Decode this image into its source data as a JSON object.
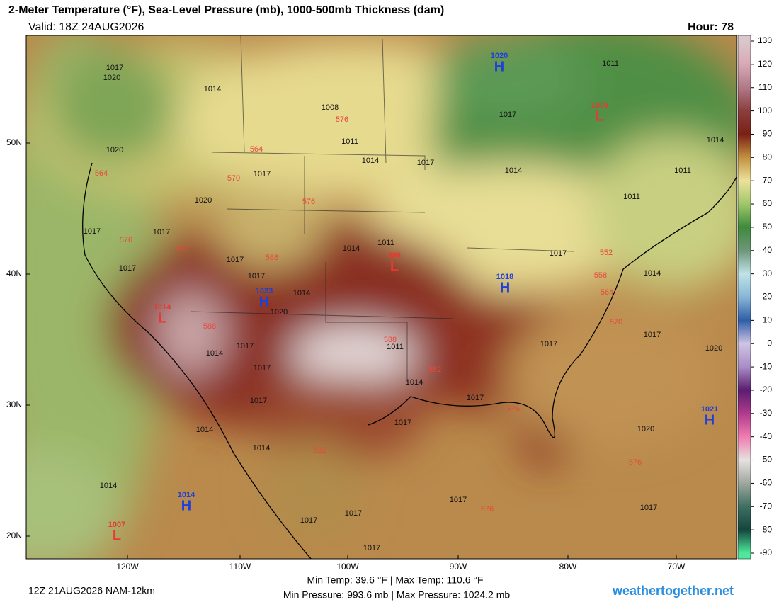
{
  "header": {
    "title": "2-Meter Temperature (°F), Sea-Level Pressure (mb), 1000-500mb Thickness (dam)",
    "valid": "Valid: 18Z 24AUG2026",
    "hour": "Hour: 78"
  },
  "colorbar": {
    "ticks": [
      130,
      120,
      110,
      100,
      90,
      80,
      70,
      60,
      50,
      40,
      30,
      20,
      10,
      0,
      -10,
      -20,
      -30,
      -40,
      -50,
      -60,
      -70,
      -80,
      -90
    ],
    "colors": [
      "#d9c7cc",
      "#d7a9b7",
      "#b17988",
      "#8a3f3c",
      "#7a1f16",
      "#c2913f",
      "#ece29a",
      "#9fc76a",
      "#3f8a3c",
      "#6f967a",
      "#bfe3e6",
      "#87b6d6",
      "#2f5ea8",
      "#cfc4e3",
      "#a98cc6",
      "#5a1d70",
      "#b03a8c",
      "#f07cb0",
      "#e7e1df",
      "#9ea79e",
      "#3e6f62",
      "#15463e",
      "#4ee89a"
    ]
  },
  "axes": {
    "lat": [
      "50N",
      "40N",
      "30N",
      "20N"
    ],
    "lon": [
      "120W",
      "110W",
      "100W",
      "90W",
      "80W",
      "70W"
    ]
  },
  "centers": [
    {
      "symbol": "H",
      "value": 1020
    },
    {
      "symbol": "L",
      "value": 1009
    },
    {
      "symbol": "H",
      "value": 1018
    },
    {
      "symbol": "H",
      "value": 1023
    },
    {
      "symbol": "L",
      "value": 1014
    },
    {
      "symbol": "L",
      "value": 998
    },
    {
      "symbol": "L",
      "value": 1007
    },
    {
      "symbol": "H",
      "value": 1014
    },
    {
      "symbol": "H",
      "value": 1021
    }
  ],
  "isobar_labels": [
    1017,
    1020,
    1014,
    1008,
    1011,
    1017,
    1011,
    1014,
    1011,
    1020,
    1017,
    1014,
    1017,
    1014,
    1011,
    1020,
    1017,
    1017,
    1017,
    1014,
    1011,
    1017,
    1017,
    1017,
    1014,
    1020,
    1014,
    1017,
    1017,
    1020,
    1011,
    1014,
    1017,
    1017,
    1014,
    1017,
    1017,
    1017,
    1014,
    1014,
    1020,
    1014,
    1017,
    1017,
    1017,
    1017,
    1017
  ],
  "thickness_labels": [
    576,
    564,
    564,
    570,
    576,
    576,
    582,
    588,
    552,
    558,
    564,
    570,
    588,
    588,
    582,
    576,
    582,
    576,
    576
  ],
  "footer": {
    "run": "12Z 21AUG2026 NAM-12km",
    "temp": "Min Temp:  39.6 °F | Max Temp: 110.6 °F",
    "pressure": "Min Pressure: 993.6 mb | Max Pressure: 1024.2 mb",
    "site": "weathertogether.net"
  }
}
